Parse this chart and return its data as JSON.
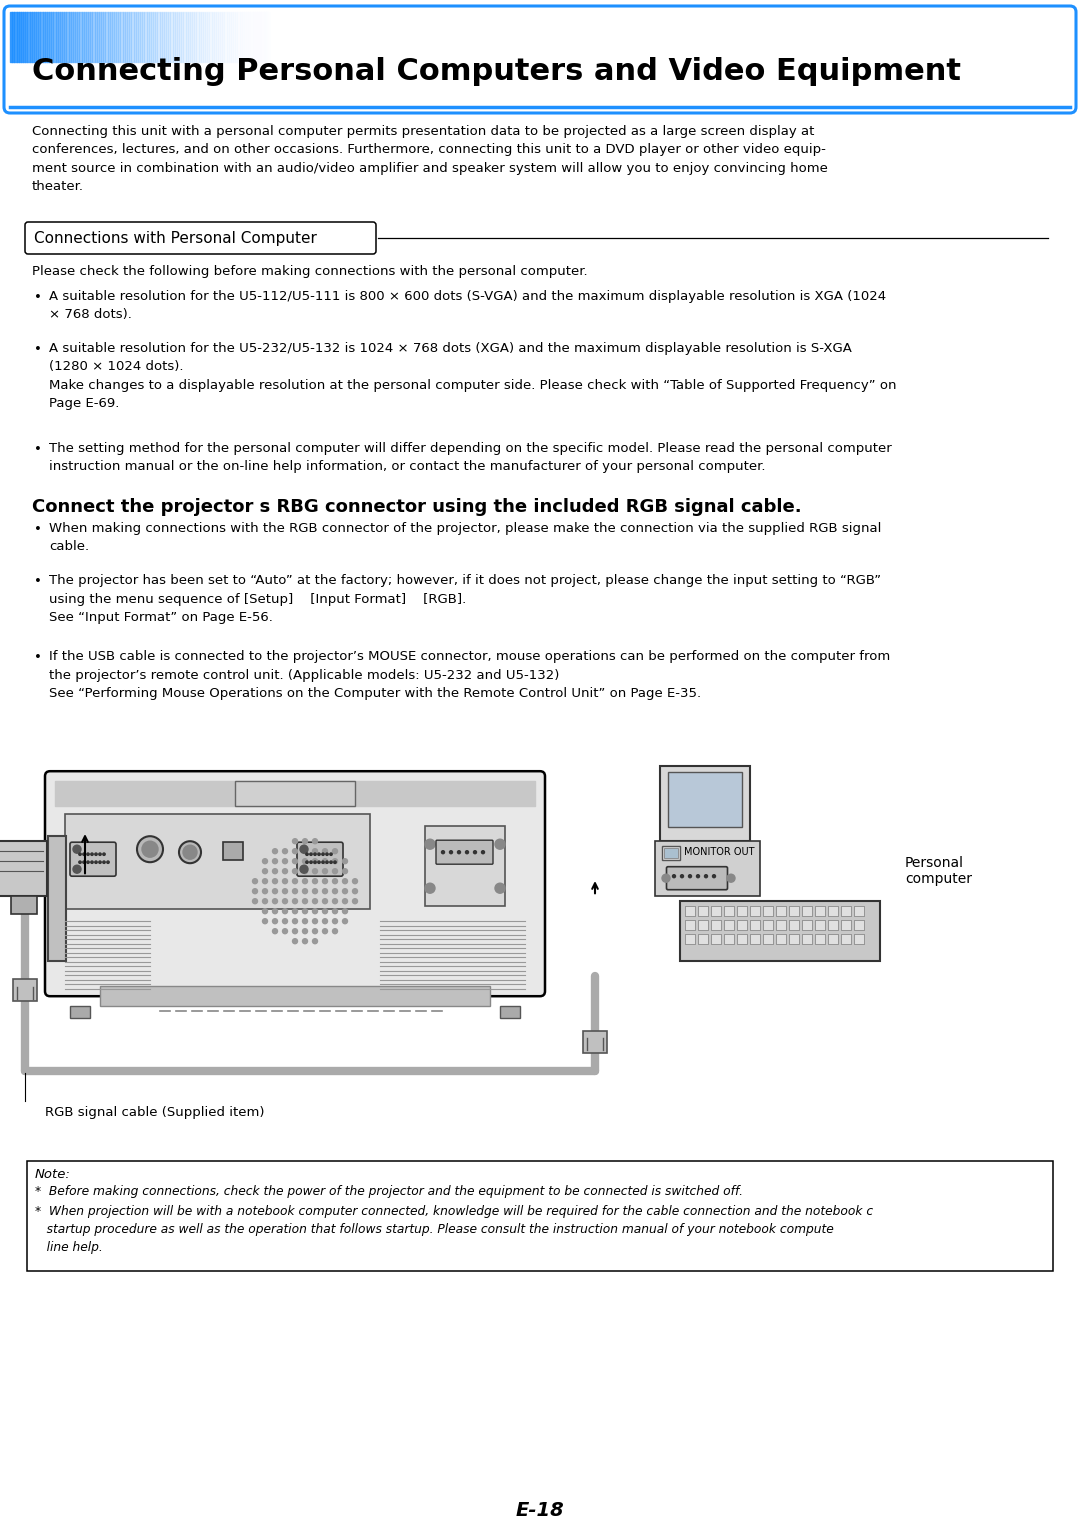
{
  "title": "Connecting Personal Computers and Video Equipment",
  "section_header": "Connections with Personal Computer",
  "intro_text": "Connecting this unit with a personal computer permits presentation data to be projected as a large screen display at\nconferences, lectures, and on other occasions. Furthermore, connecting this unit to a DVD player or other video equip-\nment source in combination with an audio/video amplifier and speaker system will allow you to enjoy convincing home\ntheater.",
  "bullet_intro": "Please check the following before making connections with the personal computer.",
  "bullet1": "A suitable resolution for the U5-112/U5-111 is 800 × 600 dots (S-VGA) and the maximum displayable resolution is XGA (1024\n× 768 dots).",
  "bullet2": "A suitable resolution for the U5-232/U5-132 is 1024 × 768 dots (XGA) and the maximum displayable resolution is S-XGA\n(1280 × 1024 dots).\nMake changes to a displayable resolution at the personal computer side. Please check with “Table of Supported Frequency” on\nPage E-69.",
  "bullet3": "The setting method for the personal computer will differ depending on the specific model. Please read the personal computer\ninstruction manual or the on-line help information, or contact the manufacturer of your personal computer.",
  "subheading": "Connect the projector s RBG connector using the included RGB signal cable.",
  "sub_bullet1": "When making connections with the RGB connector of the projector, please make the connection via the supplied RGB signal\ncable.",
  "sub_bullet2": "The projector has been set to “Auto” at the factory; however, if it does not project, please change the input setting to “RGB”\nusing the menu sequence of [Setup]    [Input Format]    [RGB].\nSee “Input Format” on Page E-56.",
  "sub_bullet3": "If the USB cable is connected to the projector’s MOUSE connector, mouse operations can be performed on the computer from\nthe projector’s remote control unit. (Applicable models: U5-232 and U5-132)\nSee “Performing Mouse Operations on the Computer with the Remote Control Unit” on Page E-35.",
  "label_monitor_out": "MONITOR OUT",
  "label_personal_computer": "Personal\ncomputer",
  "rgb_cable_caption": "RGB signal cable (Supplied item)",
  "note_title": "Note:",
  "note_line1": "*  Before making connections, check the power of the projector and the equipment to be connected is switched off.",
  "note_line2": "*  When projection will be with a notebook computer connected, knowledge will be required for the cable connection and the notebook c",
  "note_line3": "   startup procedure as well as the operation that follows startup. Please consult the instruction manual of your notebook compute",
  "note_line4": "   line help.",
  "page_num": "E-18",
  "blue": "#1e90ff",
  "black": "#000000",
  "white": "#ffffff",
  "light_gray": "#e8e8e8",
  "mid_gray": "#b0b0b0",
  "dark_gray": "#707070",
  "cable_gray": "#aaaaaa"
}
